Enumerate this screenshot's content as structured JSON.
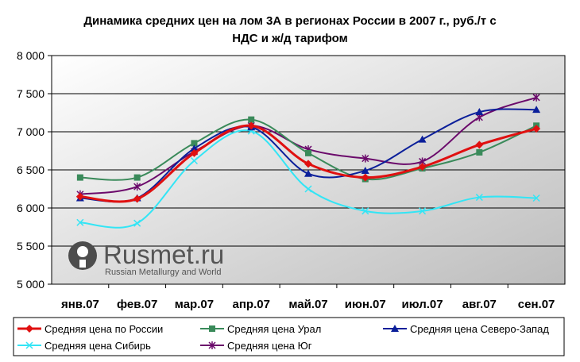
{
  "chart_data": {
    "type": "line",
    "title_lines": [
      "Динамика средних цен на лом 3А в регионах России в 2007 г., руб./т с",
      "НДС и ж/д тарифом"
    ],
    "categories": [
      "янв.07",
      "фев.07",
      "мар.07",
      "апр.07",
      "май.07",
      "июн.07",
      "июл.07",
      "авг.07",
      "сен.07"
    ],
    "ylim": [
      5000,
      8000
    ],
    "yticks": [
      5000,
      5500,
      6000,
      6500,
      7000,
      7500,
      8000
    ],
    "ytick_labels": [
      "5 000",
      "5 500",
      "6 000",
      "6 500",
      "7 000",
      "7 500",
      "8 000"
    ],
    "grid": true,
    "legend_position": "bottom",
    "series": [
      {
        "name": "Средняя цена по России",
        "color": "#e01010",
        "marker": "diamond",
        "width": 3,
        "values": [
          6150,
          6120,
          6720,
          7080,
          6580,
          6400,
          6540,
          6830,
          7040
        ]
      },
      {
        "name": "Средняя цена Урал",
        "color": "#3a8a5a",
        "marker": "square",
        "width": 2,
        "values": [
          6400,
          6400,
          6850,
          7160,
          6720,
          6380,
          6520,
          6730,
          7080
        ]
      },
      {
        "name": "Средняя цена Северо-Запад",
        "color": "#0b1f9a",
        "marker": "triangle",
        "width": 2,
        "values": [
          6130,
          6130,
          6780,
          7060,
          6450,
          6490,
          6900,
          7260,
          7290
        ]
      },
      {
        "name": "Средняя цена Сибирь",
        "color": "#33e5f5",
        "marker": "x",
        "width": 2,
        "values": [
          5810,
          5800,
          6620,
          7010,
          6250,
          5960,
          5960,
          6140,
          6130
        ]
      },
      {
        "name": "Средняя цена Юг",
        "color": "#6b0a6b",
        "marker": "star",
        "width": 2,
        "values": [
          6180,
          6280,
          6740,
          7080,
          6770,
          6650,
          6610,
          7190,
          7450
        ]
      }
    ]
  },
  "watermark": {
    "brand": "Rusmet.ru",
    "tagline": "Russian Metallurgy and World"
  }
}
